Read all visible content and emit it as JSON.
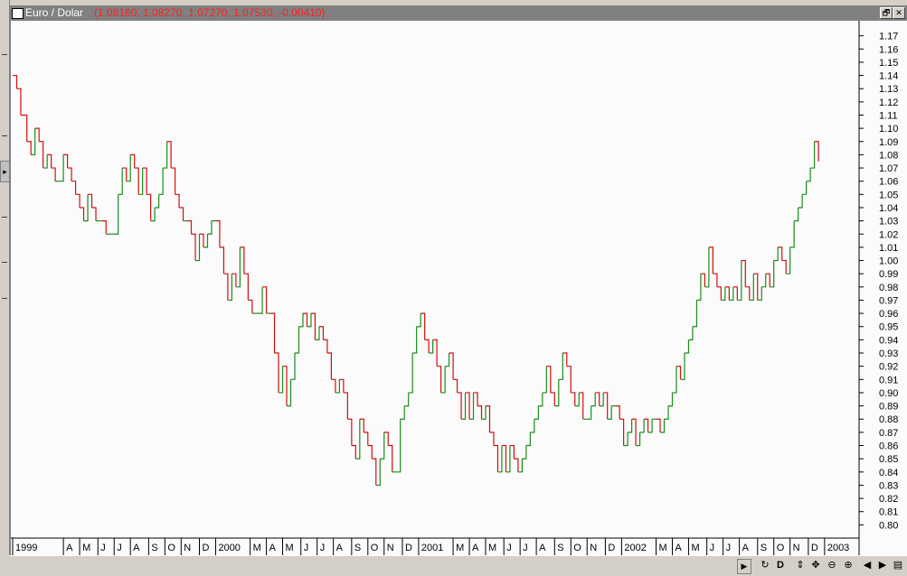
{
  "window": {
    "title": "Euro / Dolar",
    "values": "(1.08160, 1.08270, 1.07270, 1.07530, -0.00410)",
    "restore_label": "🗗",
    "close_label": "✕"
  },
  "status_bar": {
    "scroll_right": "▶",
    "tool_refresh": "↻",
    "tool_d": "D",
    "tool_updown": "⇕",
    "tool_crosshair": "✥",
    "tool_zoom_out": "⊖",
    "tool_zoom_in": "⊕",
    "tool_prev": "◀",
    "tool_next": "▶",
    "tool_page": "▤"
  },
  "chart_data": {
    "type": "line",
    "title": "Euro / Dolar",
    "xlabel": "",
    "ylabel": "",
    "ylim": [
      0.79,
      1.18
    ],
    "yticks": [
      0.8,
      0.81,
      0.82,
      0.83,
      0.84,
      0.85,
      0.86,
      0.87,
      0.88,
      0.89,
      0.9,
      0.91,
      0.92,
      0.93,
      0.94,
      0.95,
      0.96,
      0.97,
      0.98,
      0.99,
      1.0,
      1.01,
      1.02,
      1.03,
      1.04,
      1.05,
      1.06,
      1.07,
      1.08,
      1.09,
      1.1,
      1.11,
      1.12,
      1.13,
      1.14,
      1.15,
      1.16,
      1.17
    ],
    "xlim": [
      1999.0,
      2003.17
    ],
    "xticks": [
      {
        "label": "1999",
        "x": 1999.0
      },
      {
        "label": "A",
        "x": 1999.25
      },
      {
        "label": "M",
        "x": 1999.33
      },
      {
        "label": "J",
        "x": 1999.42
      },
      {
        "label": "J",
        "x": 1999.5
      },
      {
        "label": "A",
        "x": 1999.58
      },
      {
        "label": "S",
        "x": 1999.67
      },
      {
        "label": "O",
        "x": 1999.75
      },
      {
        "label": "N",
        "x": 1999.83
      },
      {
        "label": "D",
        "x": 1999.92
      },
      {
        "label": "2000",
        "x": 2000.0
      },
      {
        "label": "M",
        "x": 2000.17
      },
      {
        "label": "A",
        "x": 2000.25
      },
      {
        "label": "M",
        "x": 2000.33
      },
      {
        "label": "J",
        "x": 2000.42
      },
      {
        "label": "J",
        "x": 2000.5
      },
      {
        "label": "A",
        "x": 2000.58
      },
      {
        "label": "S",
        "x": 2000.67
      },
      {
        "label": "O",
        "x": 2000.75
      },
      {
        "label": "N",
        "x": 2000.83
      },
      {
        "label": "D",
        "x": 2000.92
      },
      {
        "label": "2001",
        "x": 2001.0
      },
      {
        "label": "M",
        "x": 2001.17
      },
      {
        "label": "A",
        "x": 2001.25
      },
      {
        "label": "M",
        "x": 2001.33
      },
      {
        "label": "J",
        "x": 2001.42
      },
      {
        "label": "J",
        "x": 2001.5
      },
      {
        "label": "A",
        "x": 2001.58
      },
      {
        "label": "S",
        "x": 2001.67
      },
      {
        "label": "O",
        "x": 2001.75
      },
      {
        "label": "N",
        "x": 2001.83
      },
      {
        "label": "D",
        "x": 2001.92
      },
      {
        "label": "2002",
        "x": 2002.0
      },
      {
        "label": "M",
        "x": 2002.17
      },
      {
        "label": "A",
        "x": 2002.25
      },
      {
        "label": "M",
        "x": 2002.33
      },
      {
        "label": "J",
        "x": 2002.42
      },
      {
        "label": "J",
        "x": 2002.5
      },
      {
        "label": "A",
        "x": 2002.58
      },
      {
        "label": "S",
        "x": 2002.67
      },
      {
        "label": "O",
        "x": 2002.75
      },
      {
        "label": "N",
        "x": 2002.83
      },
      {
        "label": "D",
        "x": 2002.92
      },
      {
        "label": "2003",
        "x": 2003.0
      }
    ],
    "up_color": "#1a8c1a",
    "down_color": "#d01010",
    "grid": false,
    "series": [
      {
        "name": "Euro / Dolar",
        "points": [
          [
            1999.0,
            1.14
          ],
          [
            1999.02,
            1.13
          ],
          [
            1999.04,
            1.11
          ],
          [
            1999.07,
            1.09
          ],
          [
            1999.09,
            1.08
          ],
          [
            1999.11,
            1.1
          ],
          [
            1999.13,
            1.09
          ],
          [
            1999.15,
            1.07
          ],
          [
            1999.17,
            1.08
          ],
          [
            1999.19,
            1.07
          ],
          [
            1999.21,
            1.06
          ],
          [
            1999.23,
            1.06
          ],
          [
            1999.25,
            1.08
          ],
          [
            1999.27,
            1.07
          ],
          [
            1999.29,
            1.06
          ],
          [
            1999.31,
            1.05
          ],
          [
            1999.33,
            1.04
          ],
          [
            1999.35,
            1.03
          ],
          [
            1999.37,
            1.05
          ],
          [
            1999.39,
            1.04
          ],
          [
            1999.41,
            1.03
          ],
          [
            1999.44,
            1.03
          ],
          [
            1999.46,
            1.02
          ],
          [
            1999.48,
            1.02
          ],
          [
            1999.5,
            1.02
          ],
          [
            1999.52,
            1.05
          ],
          [
            1999.54,
            1.07
          ],
          [
            1999.56,
            1.06
          ],
          [
            1999.58,
            1.08
          ],
          [
            1999.6,
            1.07
          ],
          [
            1999.62,
            1.05
          ],
          [
            1999.64,
            1.07
          ],
          [
            1999.66,
            1.05
          ],
          [
            1999.68,
            1.03
          ],
          [
            1999.7,
            1.04
          ],
          [
            1999.72,
            1.05
          ],
          [
            1999.74,
            1.07
          ],
          [
            1999.76,
            1.09
          ],
          [
            1999.78,
            1.07
          ],
          [
            1999.8,
            1.05
          ],
          [
            1999.82,
            1.04
          ],
          [
            1999.84,
            1.03
          ],
          [
            1999.86,
            1.03
          ],
          [
            1999.88,
            1.02
          ],
          [
            1999.9,
            1.0
          ],
          [
            1999.92,
            1.02
          ],
          [
            1999.94,
            1.01
          ],
          [
            1999.96,
            1.02
          ],
          [
            1999.98,
            1.03
          ],
          [
            2000.0,
            1.03
          ],
          [
            2000.02,
            1.01
          ],
          [
            2000.04,
            0.99
          ],
          [
            2000.06,
            0.97
          ],
          [
            2000.08,
            0.99
          ],
          [
            2000.1,
            0.98
          ],
          [
            2000.12,
            1.01
          ],
          [
            2000.14,
            0.99
          ],
          [
            2000.16,
            0.97
          ],
          [
            2000.18,
            0.96
          ],
          [
            2000.2,
            0.96
          ],
          [
            2000.23,
            0.98
          ],
          [
            2000.25,
            0.96
          ],
          [
            2000.27,
            0.96
          ],
          [
            2000.29,
            0.93
          ],
          [
            2000.31,
            0.9
          ],
          [
            2000.33,
            0.92
          ],
          [
            2000.35,
            0.89
          ],
          [
            2000.37,
            0.91
          ],
          [
            2000.39,
            0.93
          ],
          [
            2000.41,
            0.95
          ],
          [
            2000.43,
            0.96
          ],
          [
            2000.45,
            0.95
          ],
          [
            2000.47,
            0.96
          ],
          [
            2000.49,
            0.94
          ],
          [
            2000.51,
            0.95
          ],
          [
            2000.53,
            0.94
          ],
          [
            2000.55,
            0.93
          ],
          [
            2000.57,
            0.91
          ],
          [
            2000.59,
            0.9
          ],
          [
            2000.61,
            0.91
          ],
          [
            2000.63,
            0.9
          ],
          [
            2000.65,
            0.88
          ],
          [
            2000.67,
            0.86
          ],
          [
            2000.69,
            0.85
          ],
          [
            2000.71,
            0.88
          ],
          [
            2000.73,
            0.87
          ],
          [
            2000.75,
            0.86
          ],
          [
            2000.77,
            0.85
          ],
          [
            2000.79,
            0.83
          ],
          [
            2000.81,
            0.85
          ],
          [
            2000.83,
            0.87
          ],
          [
            2000.85,
            0.86
          ],
          [
            2000.87,
            0.84
          ],
          [
            2000.89,
            0.84
          ],
          [
            2000.91,
            0.88
          ],
          [
            2000.93,
            0.89
          ],
          [
            2000.95,
            0.9
          ],
          [
            2000.97,
            0.93
          ],
          [
            2000.99,
            0.95
          ],
          [
            2001.01,
            0.96
          ],
          [
            2001.03,
            0.94
          ],
          [
            2001.05,
            0.93
          ],
          [
            2001.07,
            0.94
          ],
          [
            2001.09,
            0.92
          ],
          [
            2001.11,
            0.9
          ],
          [
            2001.13,
            0.92
          ],
          [
            2001.15,
            0.93
          ],
          [
            2001.17,
            0.91
          ],
          [
            2001.19,
            0.9
          ],
          [
            2001.21,
            0.88
          ],
          [
            2001.23,
            0.9
          ],
          [
            2001.25,
            0.88
          ],
          [
            2001.27,
            0.9
          ],
          [
            2001.29,
            0.89
          ],
          [
            2001.31,
            0.88
          ],
          [
            2001.33,
            0.89
          ],
          [
            2001.35,
            0.87
          ],
          [
            2001.37,
            0.86
          ],
          [
            2001.39,
            0.84
          ],
          [
            2001.41,
            0.86
          ],
          [
            2001.43,
            0.84
          ],
          [
            2001.45,
            0.86
          ],
          [
            2001.47,
            0.85
          ],
          [
            2001.49,
            0.84
          ],
          [
            2001.51,
            0.85
          ],
          [
            2001.53,
            0.86
          ],
          [
            2001.55,
            0.87
          ],
          [
            2001.57,
            0.88
          ],
          [
            2001.59,
            0.89
          ],
          [
            2001.61,
            0.9
          ],
          [
            2001.63,
            0.92
          ],
          [
            2001.65,
            0.9
          ],
          [
            2001.67,
            0.89
          ],
          [
            2001.69,
            0.91
          ],
          [
            2001.71,
            0.93
          ],
          [
            2001.73,
            0.92
          ],
          [
            2001.75,
            0.9
          ],
          [
            2001.77,
            0.89
          ],
          [
            2001.79,
            0.9
          ],
          [
            2001.81,
            0.88
          ],
          [
            2001.83,
            0.88
          ],
          [
            2001.85,
            0.89
          ],
          [
            2001.87,
            0.9
          ],
          [
            2001.89,
            0.89
          ],
          [
            2001.91,
            0.9
          ],
          [
            2001.93,
            0.88
          ],
          [
            2001.95,
            0.89
          ],
          [
            2001.97,
            0.89
          ],
          [
            2001.99,
            0.88
          ],
          [
            2002.01,
            0.86
          ],
          [
            2002.03,
            0.87
          ],
          [
            2002.05,
            0.88
          ],
          [
            2002.07,
            0.86
          ],
          [
            2002.09,
            0.87
          ],
          [
            2002.11,
            0.88
          ],
          [
            2002.13,
            0.87
          ],
          [
            2002.15,
            0.88
          ],
          [
            2002.17,
            0.88
          ],
          [
            2002.19,
            0.87
          ],
          [
            2002.21,
            0.88
          ],
          [
            2002.23,
            0.89
          ],
          [
            2002.25,
            0.9
          ],
          [
            2002.27,
            0.92
          ],
          [
            2002.29,
            0.91
          ],
          [
            2002.31,
            0.93
          ],
          [
            2002.33,
            0.94
          ],
          [
            2002.35,
            0.95
          ],
          [
            2002.37,
            0.97
          ],
          [
            2002.39,
            0.99
          ],
          [
            2002.41,
            0.98
          ],
          [
            2002.43,
            1.01
          ],
          [
            2002.45,
            0.99
          ],
          [
            2002.47,
            0.98
          ],
          [
            2002.49,
            0.97
          ],
          [
            2002.51,
            0.98
          ],
          [
            2002.53,
            0.97
          ],
          [
            2002.55,
            0.98
          ],
          [
            2002.57,
            0.97
          ],
          [
            2002.59,
            1.0
          ],
          [
            2002.61,
            0.98
          ],
          [
            2002.63,
            0.97
          ],
          [
            2002.65,
            0.99
          ],
          [
            2002.67,
            0.97
          ],
          [
            2002.69,
            0.98
          ],
          [
            2002.71,
            0.99
          ],
          [
            2002.73,
            0.98
          ],
          [
            2002.75,
            1.0
          ],
          [
            2002.77,
            1.01
          ],
          [
            2002.79,
            1.0
          ],
          [
            2002.81,
            0.99
          ],
          [
            2002.83,
            1.01
          ],
          [
            2002.85,
            1.03
          ],
          [
            2002.87,
            1.04
          ],
          [
            2002.89,
            1.05
          ],
          [
            2002.91,
            1.06
          ],
          [
            2002.93,
            1.07
          ],
          [
            2002.95,
            1.09
          ],
          [
            2002.97,
            1.075
          ]
        ]
      }
    ]
  }
}
